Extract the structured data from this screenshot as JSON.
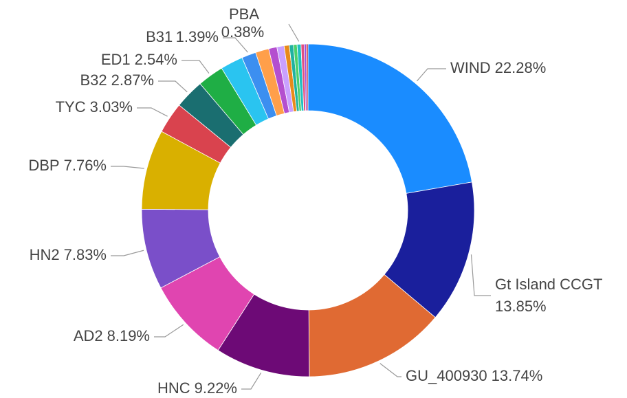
{
  "chart_data": {
    "type": "donut",
    "categories": [
      "WIND",
      "Gt Island CCGT",
      "GU_400930",
      "HNC",
      "AD2",
      "HN2",
      "DBP",
      "TYC",
      "B32",
      "ED1",
      null,
      "B31",
      null,
      null,
      null,
      null,
      null,
      null,
      "PBA",
      null,
      null,
      null
    ],
    "values": [
      22.28,
      13.85,
      13.74,
      9.22,
      8.19,
      7.83,
      7.76,
      3.03,
      2.87,
      2.54,
      2.2,
      1.39,
      1.3,
      0.8,
      0.7,
      0.5,
      0.4,
      0.35,
      0.38,
      0.3,
      0.2,
      0.17
    ],
    "value_labels": [
      "22.28%",
      "13.85%",
      "13.74%",
      "9.22%",
      "8.19%",
      "7.83%",
      "7.76%",
      "3.03%",
      "2.87%",
      "2.54%",
      null,
      "1.39%",
      null,
      null,
      null,
      null,
      null,
      null,
      "0.38%",
      null,
      null,
      null
    ],
    "colors": [
      "#1a8cff",
      "#1a1f9c",
      "#e06a33",
      "#6d0a76",
      "#e045b0",
      "#7a4fc9",
      "#d9b000",
      "#d9434e",
      "#1a6e70",
      "#1fae45",
      "#2ac4f0",
      "#3c8ff0",
      "#ff9f4a",
      "#b44fcf",
      "#c9a0ff",
      "#e88a1a",
      "#20b2a0",
      "#4cd06a",
      "#20c0c0",
      "#e05080",
      "#9a50e0",
      "#c02030"
    ]
  }
}
